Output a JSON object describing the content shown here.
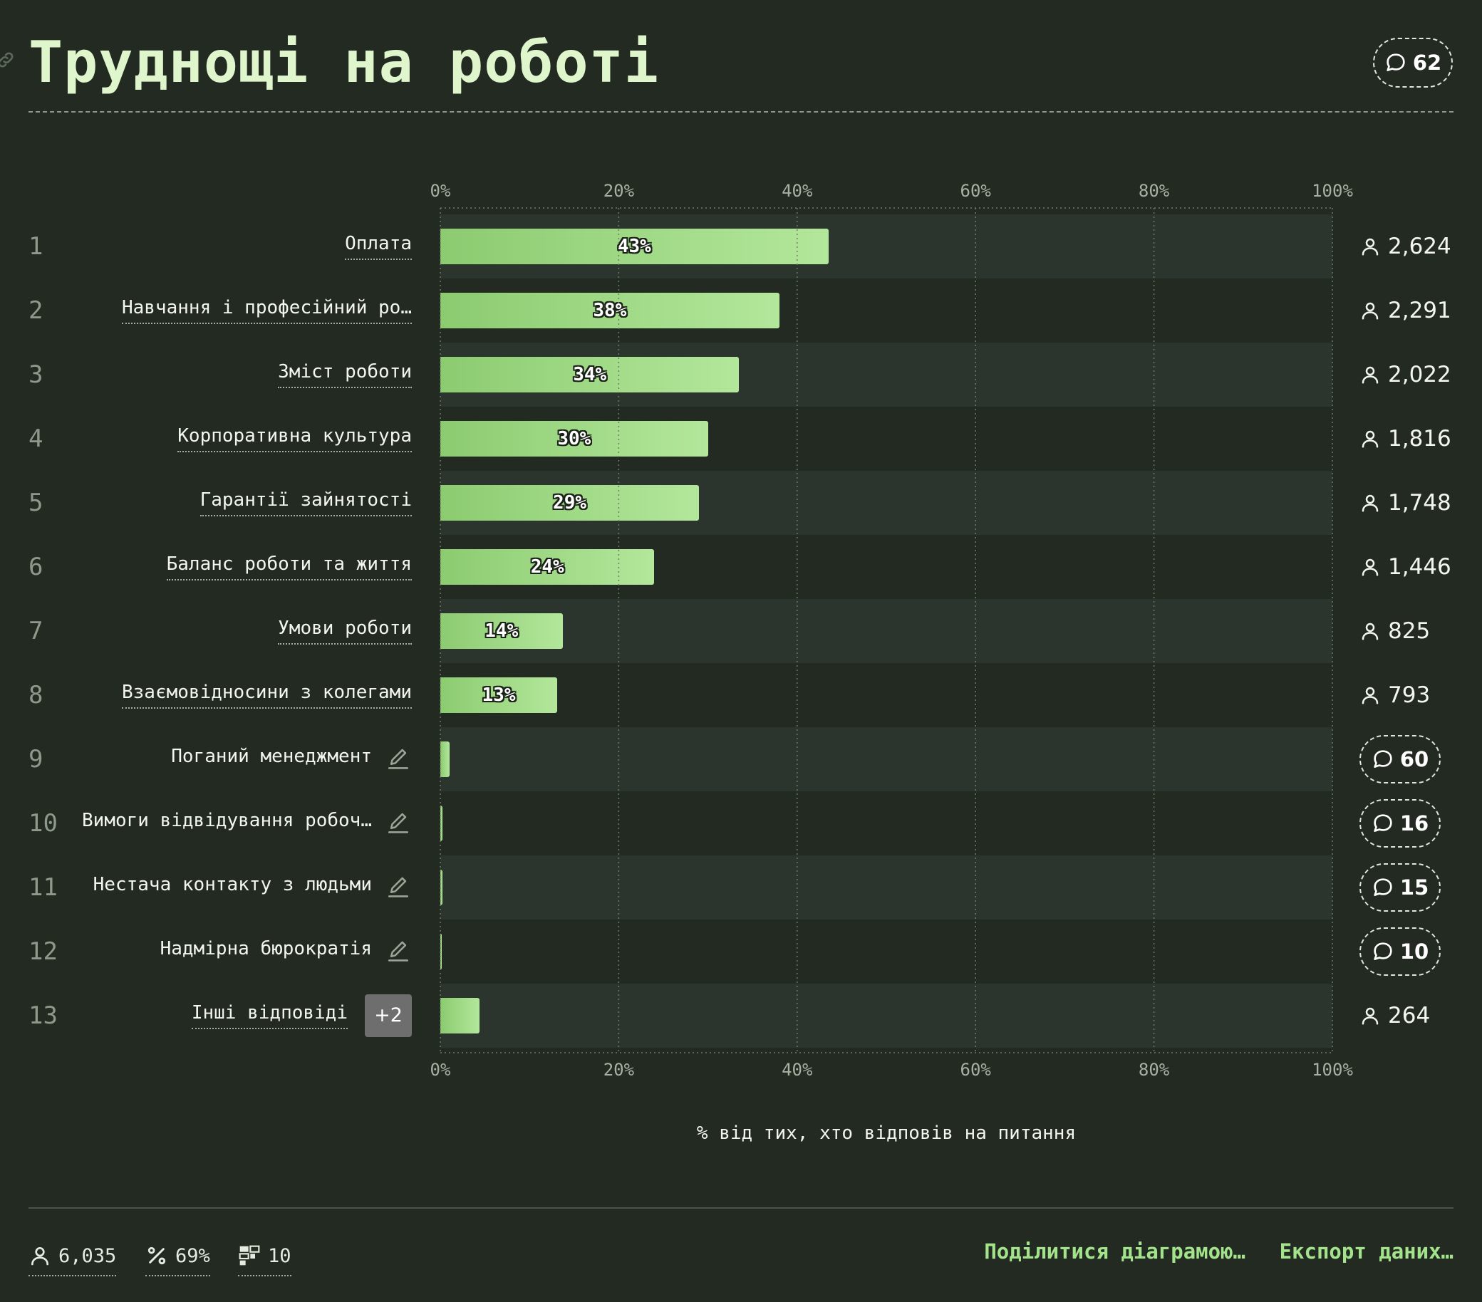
{
  "title": "Труднощі на роботі",
  "header_comments": "62",
  "icons": {
    "link": "link-icon",
    "comment": "comment-icon",
    "user": "user-icon",
    "edit": "edit-icon",
    "percent": "percent-icon",
    "views": "views-icon"
  },
  "colors": {
    "background": "#232a21",
    "title": "#dff5cc",
    "bar_start": "#8ccb70",
    "bar_end": "#b3e79b",
    "link": "#a3e38b"
  },
  "chart_data": {
    "type": "bar",
    "orientation": "horizontal",
    "title": "Труднощі на роботі",
    "xlabel": "% від тих, хто відповів на питання",
    "x_ticks": [
      "0%",
      "20%",
      "40%",
      "60%",
      "80%",
      "100%"
    ],
    "xlim": [
      0,
      100
    ],
    "grid": true,
    "categories": [
      "Оплата",
      "Навчання і професійний ро…",
      "Зміст роботи",
      "Корпоративна культура",
      "Гарантії зайнятості",
      "Баланс роботи та життя",
      "Умови роботи",
      "Взаємовідносини з колегами",
      "Поганий менеджмент",
      "Вимоги відвідування робоч…",
      "Нестача контакту з людьми",
      "Надмірна бюрократія",
      "Інші відповіді"
    ],
    "values": [
      43.5,
      38,
      33.5,
      30,
      29,
      24,
      13.7,
      13.1,
      1,
      0.27,
      0.25,
      0.17,
      4.4
    ],
    "value_labels": [
      "43%",
      "38%",
      "34%",
      "30%",
      "29%",
      "24%",
      "14%",
      "13%",
      "",
      "",
      "",
      "",
      ""
    ],
    "rows": [
      {
        "rank": "1",
        "kind": "count",
        "count": "2,624"
      },
      {
        "rank": "2",
        "kind": "count",
        "count": "2,291"
      },
      {
        "rank": "3",
        "kind": "count",
        "count": "2,022"
      },
      {
        "rank": "4",
        "kind": "count",
        "count": "1,816"
      },
      {
        "rank": "5",
        "kind": "count",
        "count": "1,748"
      },
      {
        "rank": "6",
        "kind": "count",
        "count": "1,446"
      },
      {
        "rank": "7",
        "kind": "count",
        "count": "825"
      },
      {
        "rank": "8",
        "kind": "count",
        "count": "793"
      },
      {
        "rank": "9",
        "kind": "comments",
        "count": "60",
        "editable": true
      },
      {
        "rank": "10",
        "kind": "comments",
        "count": "16",
        "editable": true
      },
      {
        "rank": "11",
        "kind": "comments",
        "count": "15",
        "editable": true
      },
      {
        "rank": "12",
        "kind": "comments",
        "count": "10",
        "editable": true
      },
      {
        "rank": "13",
        "kind": "count",
        "count": "264",
        "extra": "+2"
      }
    ]
  },
  "footer": {
    "users": "6,035",
    "percent": "69%",
    "views": "10",
    "share": "Поділитися діаграмою…",
    "export": "Експорт даних…"
  }
}
